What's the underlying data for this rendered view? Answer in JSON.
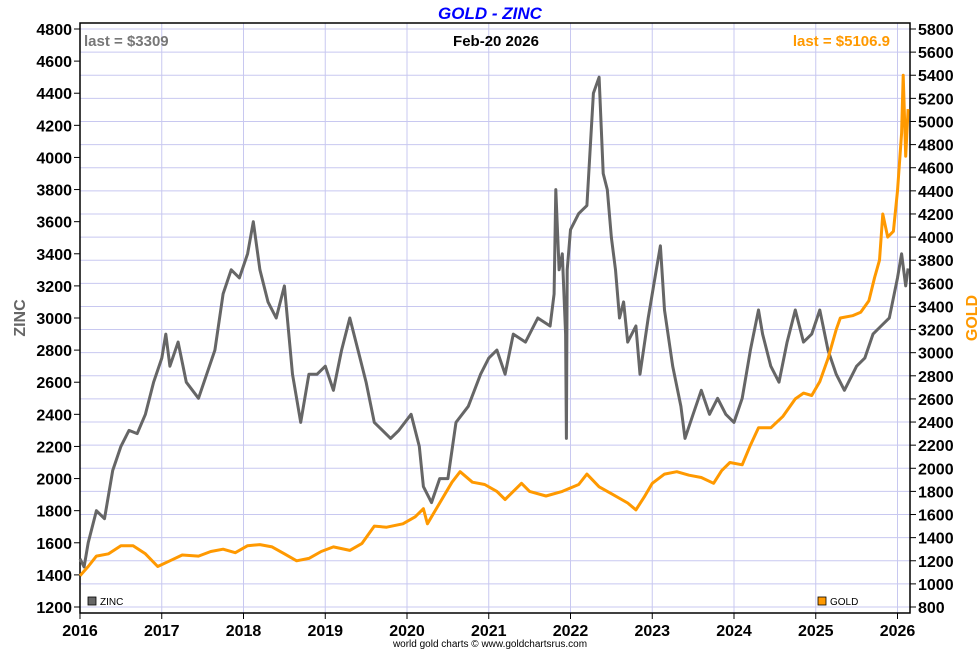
{
  "chart_data": {
    "type": "line",
    "title": "GOLD - ZINC",
    "date_label": "Feb-20  2026",
    "footer": "world gold charts © www.goldchartsrus.com",
    "ylabel_left": "ZINC",
    "ylabel_right": "GOLD",
    "ylim_left": [
      1200,
      4800
    ],
    "ylim_right": [
      800,
      5800
    ],
    "xlim": [
      2016,
      2026.15
    ],
    "x_ticks": [
      "2016",
      "2017",
      "2018",
      "2019",
      "2020",
      "2021",
      "2022",
      "2023",
      "2024",
      "2025",
      "2026"
    ],
    "y_ticks_left": [
      "1200",
      "1400",
      "1600",
      "1800",
      "2000",
      "2200",
      "2400",
      "2600",
      "2800",
      "3000",
      "3200",
      "3400",
      "3600",
      "3800",
      "4000",
      "4200",
      "4400",
      "4600",
      "4800"
    ],
    "y_ticks_right": [
      "800",
      "1000",
      "1200",
      "1400",
      "1600",
      "1800",
      "2000",
      "2200",
      "2400",
      "2600",
      "2800",
      "3000",
      "3200",
      "3400",
      "3600",
      "3800",
      "4000",
      "4200",
      "4400",
      "4600",
      "4800",
      "5000",
      "5200",
      "5400",
      "5600",
      "5800"
    ],
    "grid": true,
    "colors": {
      "zinc": "#666666",
      "gold": "#ff9900",
      "title": "#0000ff",
      "grid": "#c8c8f0"
    },
    "series": [
      {
        "name": "ZINC",
        "axis": "left",
        "last_label": "last = $3309",
        "x": [
          2016.0,
          2016.05,
          2016.1,
          2016.2,
          2016.3,
          2016.4,
          2016.5,
          2016.6,
          2016.7,
          2016.8,
          2016.9,
          2017.0,
          2017.05,
          2017.1,
          2017.2,
          2017.3,
          2017.45,
          2017.55,
          2017.65,
          2017.75,
          2017.85,
          2017.95,
          2018.05,
          2018.12,
          2018.2,
          2018.3,
          2018.4,
          2018.5,
          2018.6,
          2018.7,
          2018.8,
          2018.9,
          2019.0,
          2019.1,
          2019.2,
          2019.3,
          2019.4,
          2019.5,
          2019.6,
          2019.7,
          2019.8,
          2019.9,
          2020.05,
          2020.15,
          2020.2,
          2020.3,
          2020.4,
          2020.5,
          2020.6,
          2020.75,
          2020.9,
          2021.0,
          2021.1,
          2021.2,
          2021.3,
          2021.45,
          2021.6,
          2021.75,
          2021.8,
          2021.82,
          2021.86,
          2021.9,
          2021.94,
          2021.95,
          2021.96,
          2022.0,
          2022.1,
          2022.2,
          2022.28,
          2022.35,
          2022.4,
          2022.45,
          2022.5,
          2022.55,
          2022.6,
          2022.65,
          2022.7,
          2022.8,
          2022.85,
          2022.95,
          2023.05,
          2023.1,
          2023.15,
          2023.25,
          2023.35,
          2023.4,
          2023.5,
          2023.6,
          2023.7,
          2023.8,
          2023.9,
          2024.0,
          2024.1,
          2024.2,
          2024.3,
          2024.35,
          2024.45,
          2024.55,
          2024.65,
          2024.75,
          2024.85,
          2024.95,
          2025.05,
          2025.15,
          2025.25,
          2025.35,
          2025.5,
          2025.6,
          2025.7,
          2025.8,
          2025.9,
          2026.0,
          2026.05,
          2026.1,
          2026.13
        ],
        "values": [
          1500,
          1450,
          1600,
          1800,
          1750,
          2050,
          2200,
          2300,
          2280,
          2400,
          2600,
          2750,
          2900,
          2700,
          2850,
          2600,
          2500,
          2650,
          2800,
          3150,
          3300,
          3250,
          3400,
          3600,
          3300,
          3100,
          3000,
          3200,
          2650,
          2350,
          2650,
          2650,
          2700,
          2550,
          2800,
          3000,
          2800,
          2600,
          2350,
          2300,
          2250,
          2300,
          2400,
          2200,
          1950,
          1850,
          2000,
          2000,
          2350,
          2450,
          2650,
          2750,
          2800,
          2650,
          2900,
          2850,
          3000,
          2950,
          3150,
          3800,
          3300,
          3400,
          2900,
          2250,
          3300,
          3550,
          3650,
          3700,
          4400,
          4500,
          3900,
          3800,
          3500,
          3300,
          3000,
          3100,
          2850,
          2950,
          2650,
          3000,
          3300,
          3450,
          3050,
          2700,
          2450,
          2250,
          2400,
          2550,
          2400,
          2500,
          2400,
          2350,
          2500,
          2800,
          3050,
          2900,
          2700,
          2600,
          2850,
          3050,
          2850,
          2900,
          3050,
          2800,
          2650,
          2550,
          2700,
          2750,
          2900,
          2950,
          3000,
          3250,
          3400,
          3200,
          3309
        ]
      },
      {
        "name": "GOLD",
        "axis": "right",
        "last_label": "last = $5106.9",
        "x": [
          2016.0,
          2016.1,
          2016.2,
          2016.35,
          2016.5,
          2016.65,
          2016.8,
          2016.95,
          2017.1,
          2017.25,
          2017.45,
          2017.6,
          2017.75,
          2017.9,
          2018.05,
          2018.2,
          2018.35,
          2018.5,
          2018.65,
          2018.8,
          2018.95,
          2019.1,
          2019.3,
          2019.45,
          2019.6,
          2019.75,
          2019.95,
          2020.1,
          2020.2,
          2020.25,
          2020.4,
          2020.55,
          2020.65,
          2020.8,
          2020.95,
          2021.1,
          2021.2,
          2021.4,
          2021.5,
          2021.7,
          2021.9,
          2022.1,
          2022.2,
          2022.35,
          2022.5,
          2022.7,
          2022.8,
          2022.9,
          2023.0,
          2023.15,
          2023.3,
          2023.45,
          2023.6,
          2023.75,
          2023.85,
          2023.95,
          2024.1,
          2024.2,
          2024.3,
          2024.45,
          2024.6,
          2024.75,
          2024.85,
          2024.95,
          2025.05,
          2025.15,
          2025.25,
          2025.3,
          2025.45,
          2025.55,
          2025.65,
          2025.72,
          2025.78,
          2025.82,
          2025.88,
          2025.95,
          2026.0,
          2026.05,
          2026.07,
          2026.1,
          2026.13
        ],
        "values": [
          1070,
          1150,
          1240,
          1260,
          1330,
          1330,
          1260,
          1150,
          1200,
          1250,
          1240,
          1280,
          1300,
          1270,
          1330,
          1340,
          1320,
          1260,
          1200,
          1220,
          1280,
          1320,
          1290,
          1350,
          1500,
          1490,
          1520,
          1580,
          1650,
          1520,
          1700,
          1880,
          1970,
          1880,
          1860,
          1800,
          1730,
          1870,
          1800,
          1760,
          1800,
          1860,
          1950,
          1840,
          1780,
          1700,
          1640,
          1750,
          1870,
          1950,
          1970,
          1940,
          1920,
          1870,
          1980,
          2050,
          2030,
          2200,
          2350,
          2350,
          2450,
          2600,
          2650,
          2630,
          2750,
          2950,
          3200,
          3300,
          3320,
          3350,
          3450,
          3650,
          3800,
          4200,
          4000,
          4050,
          4400,
          4900,
          5400,
          4700,
          5106.9
        ]
      }
    ]
  }
}
